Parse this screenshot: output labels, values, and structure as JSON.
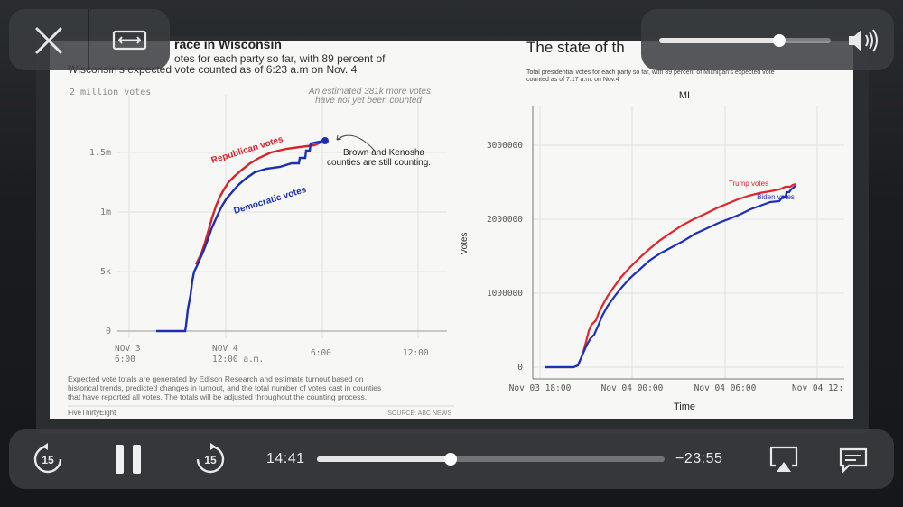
{
  "player": {
    "elapsed": "14:41",
    "remaining": "−23:55",
    "progress_fraction": 0.385,
    "volume_fraction": 0.7,
    "rewind_seconds": "15",
    "forward_seconds": "15",
    "icons": {
      "close": "close-icon",
      "aspect": "aspect-ratio-icon",
      "speaker": "speaker-icon",
      "rewind": "rewind-15-icon",
      "pause": "pause-icon",
      "forward": "forward-15-icon",
      "airplay": "airplay-icon",
      "subtitles": "subtitles-icon"
    }
  },
  "left_chart": {
    "title": "race in Wisconsin",
    "subtitle_line1": "otes for each party so far, with 89 percent of",
    "subtitle_line2": "Wisconsin's expected vote counted as of 6:23 a.m on Nov. 4",
    "top_label": "2 million votes",
    "annotation_estimate_line1": "An estimated 381k more votes",
    "annotation_estimate_line2": "have not yet been counted",
    "annotation_counting_line1": "Brown and Kenosha",
    "annotation_counting_line2": "counties are still counting.",
    "rep_label": "Republican votes",
    "dem_label": "Democratic votes",
    "y_ticks": [
      "1.5m",
      "1m",
      "5k",
      "0"
    ],
    "x_ticks": [
      {
        "line1": "NOV 3",
        "line2": "6:00"
      },
      {
        "line1": "NOV 4",
        "line2": "12:00 a.m."
      },
      {
        "line1": "6:00",
        "line2": ""
      },
      {
        "line1": "12:00",
        "line2": ""
      }
    ],
    "footnote_line1": "Expected vote totals are generated by Edison Research and estimate turnout based on",
    "footnote_line2": "historical trends, predicted changes in turnout, and the total number of votes cast in counties",
    "footnote_line3": "that have reported all votes. The totals will be adjusted throughout the counting process.",
    "brand": "FiveThirtyEight",
    "source": "SOURCE: ABC NEWS",
    "colors": {
      "rep": "#d7222a",
      "dem": "#1c2fb0"
    }
  },
  "right_chart": {
    "title": "The state of th",
    "subtitle_line1": "Total presidential votes for each party so far, with 89 percent of Michigan's expected vote",
    "subtitle_line2": "counted as of 7:17 a.m. on Nov.4",
    "panel_title": "MI",
    "ylabel": "Votes",
    "xlabel": "Time",
    "y_ticks": [
      "3000000",
      "2000000",
      "1000000",
      "0"
    ],
    "x_ticks": [
      "Nov 03 18:00",
      "Nov 04 00:00",
      "Nov 04 06:00",
      "Nov 04 12:"
    ],
    "trump_label": "Trump votes",
    "biden_label": "Biden votes",
    "colors": {
      "trump": "#e0262a",
      "biden": "#1c2fb8"
    }
  }
}
